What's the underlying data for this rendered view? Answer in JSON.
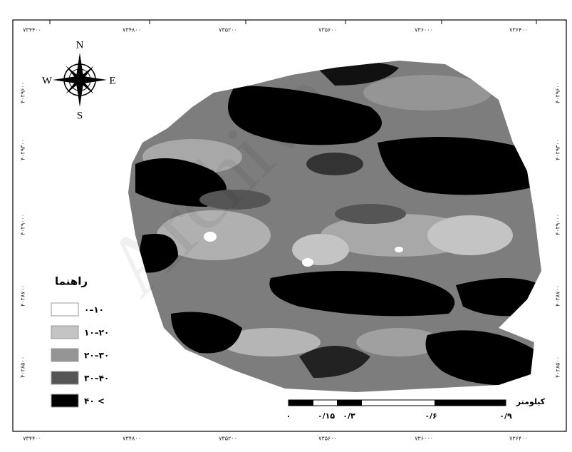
{
  "watermark": "Archive",
  "top_ticks": [
    "۷۳۴۴۰۰",
    "۷۳۴۸۰۰",
    "۷۳۵۲۰۰",
    "۷۳۵۶۰۰",
    "۷۳۶۰۰۰",
    "۷۳۶۴۰۰"
  ],
  "bottom_ticks": [
    "۷۳۴۴۰۰",
    "۷۳۴۸۰۰",
    "۷۳۵۲۰۰",
    "۷۳۵۶۰۰",
    "۷۳۶۰۰۰",
    "۷۳۶۴۰۰"
  ],
  "left_ticks": [
    "۴۰۲۹۶۰۰",
    "۴۰۲۹۳۰۰",
    "۴۰۲۹۰۰۰",
    "۴۰۲۸۷۰۰",
    "۴۰۲۸۵۰۰"
  ],
  "right_ticks": [
    "۴۰۲۹۶۰۰",
    "۴۰۲۹۳۰۰",
    "۴۰۲۹۰۰۰",
    "۴۰۲۸۷۰۰",
    "۴۰۲۸۵۰۰"
  ],
  "compass": {
    "north": "N",
    "south": "S",
    "east": "E",
    "west": "W"
  },
  "legend": {
    "title": "راهنما",
    "items": [
      {
        "label": "۰–۱۰",
        "color": "#ffffff"
      },
      {
        "label": "۱۰–۲۰",
        "color": "#c4c4c4"
      },
      {
        "label": "۲۰–۳۰",
        "color": "#959595"
      },
      {
        "label": "۳۰–۴۰",
        "color": "#555555"
      },
      {
        "label": "۴۰ <",
        "color": "#000000"
      }
    ]
  },
  "scale_bar": {
    "unit": "کیلومتر",
    "labels": [
      "۰",
      "۰/۱۵",
      "۰/۳",
      "۰/۶",
      "۰/۹"
    ]
  }
}
